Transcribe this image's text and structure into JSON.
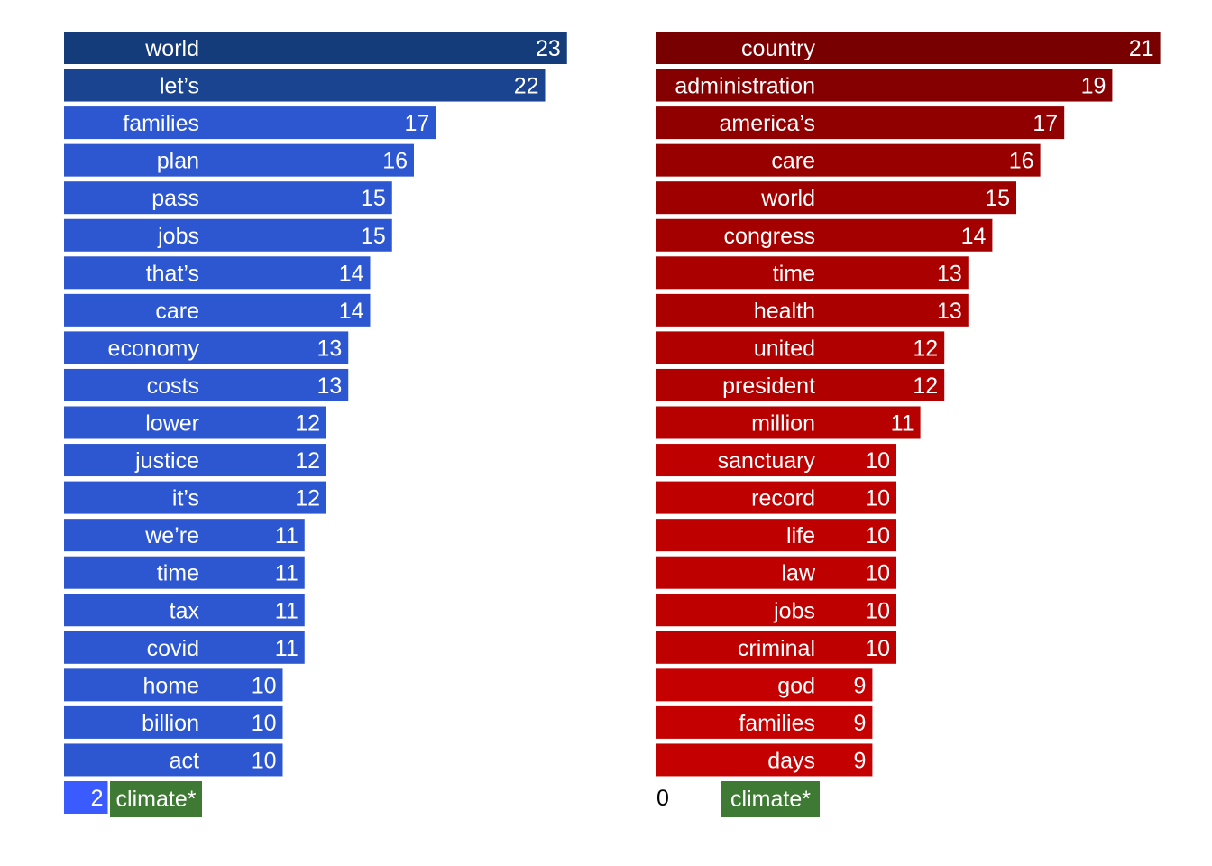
{
  "chart_data": [
    {
      "type": "bar",
      "orientation": "horizontal",
      "categories": [
        "world",
        "let’s",
        "families",
        "plan",
        "pass",
        "jobs",
        "that’s",
        "care",
        "economy",
        "costs",
        "lower",
        "justice",
        "it’s",
        "we’re",
        "time",
        "tax",
        "covid",
        "home",
        "billion",
        "act"
      ],
      "values": [
        23,
        22,
        17,
        16,
        15,
        15,
        14,
        14,
        13,
        13,
        12,
        12,
        12,
        11,
        11,
        11,
        11,
        10,
        10,
        10
      ],
      "extra": {
        "label": "climate*",
        "value": 2
      },
      "colors": {
        "dark": "#143c7a",
        "light": "#2c57d0",
        "extra_bar": "#3a5bff",
        "extra_tag": "#3e7a33"
      }
    },
    {
      "type": "bar",
      "orientation": "horizontal",
      "categories": [
        "country",
        "administration",
        "america’s",
        "care",
        "world",
        "congress",
        "time",
        "health",
        "united",
        "president",
        "million",
        "sanctuary",
        "record",
        "life",
        "law",
        "jobs",
        "criminal",
        "god",
        "families",
        "days"
      ],
      "values": [
        21,
        19,
        17,
        16,
        15,
        14,
        13,
        13,
        12,
        12,
        11,
        10,
        10,
        10,
        10,
        10,
        10,
        9,
        9,
        9
      ],
      "extra": {
        "label": "climate*",
        "value": 0
      },
      "colors": {
        "dark": "#780000",
        "light": "#c40000",
        "extra_tag": "#3e7a33"
      }
    }
  ]
}
